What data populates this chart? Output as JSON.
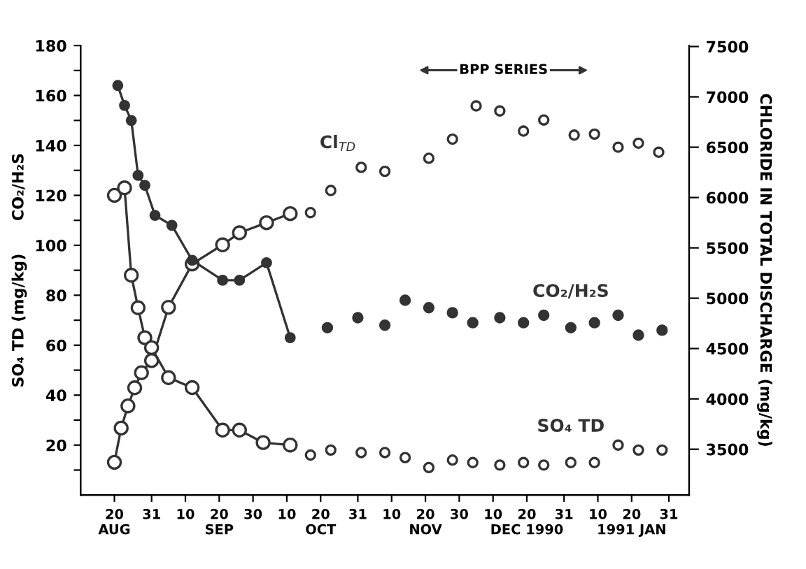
{
  "chart_data": {
    "type": "scatter",
    "xlabel": null,
    "ylabel": "SO₄ TD (mg/kg)      CO₂/H₂S",
    "y2label": "CHLORIDE IN TOTAL DISCHARGE (mg/kg)",
    "series": [
      {
        "type": "line",
        "marker": "circle",
        "color": "#333333",
        "x": [
          "1990-08-21",
          "1990-08-23",
          "1990-08-25",
          "1990-08-27",
          "1990-08-29",
          "1990-09-01",
          "1990-09-06",
          "1990-09-12",
          "1990-09-21",
          "1990-09-26",
          "1990-10-04",
          "1990-10-11"
        ],
        "values": [
          164,
          156,
          150,
          128,
          124,
          112,
          108,
          94,
          86,
          86,
          93,
          63
        ]
      },
      {
        "name": "CO₂/H₂S",
        "marker": "circle",
        "color": "#333333",
        "x": [
          "1990-10-22",
          "1990-10-31",
          "1990-11-08",
          "1990-11-14",
          "1990-11-21",
          "1990-11-28",
          "1990-12-04",
          "1990-12-12",
          "1990-12-19",
          "1990-12-25",
          "1991-01-02",
          "1991-01-09",
          "1991-01-16",
          "1991-01-22",
          "1991-01-29"
        ],
        "values": [
          67,
          71,
          68,
          78,
          75,
          73,
          69,
          71,
          69,
          72,
          67,
          69,
          72,
          64,
          66
        ]
      },
      {
        "type": "line",
        "marker": "open circle",
        "axis": "y2",
        "color": "#333333",
        "x": [
          "1990-08-20",
          "1990-08-22",
          "1990-08-24",
          "1990-08-26",
          "1990-08-28",
          "1990-08-31",
          "1990-09-05",
          "1990-09-12",
          "1990-09-21",
          "1990-09-26",
          "1990-10-04",
          "1990-10-11"
        ],
        "values": [
          3370,
          3710,
          3930,
          4110,
          4260,
          4380,
          4910,
          5340,
          5530,
          5650,
          5750,
          5840
        ]
      },
      {
        "name": "Cl$_{TD}$",
        "marker": "open circle",
        "axis": "y2",
        "color": "#333333",
        "x": [
          "1990-10-17",
          "1990-10-23",
          "1990-11-01",
          "1990-11-08",
          "1990-11-21",
          "1990-11-28",
          "1990-12-05",
          "1990-12-12",
          "1990-12-19",
          "1990-12-25",
          "1991-01-03",
          "1991-01-09",
          "1991-01-16",
          "1991-01-22",
          "1991-01-28"
        ],
        "values": [
          5850,
          6070,
          6300,
          6260,
          6390,
          6580,
          6910,
          6860,
          6660,
          6770,
          6620,
          6630,
          6500,
          6540,
          6450
        ]
      },
      {
        "type": "line",
        "marker": "open circle",
        "color": "#333333",
        "x": [
          "1990-08-20",
          "1990-08-23",
          "1990-08-25",
          "1990-08-27",
          "1990-08-29",
          "1990-08-31",
          "1990-09-05",
          "1990-09-12",
          "1990-09-21",
          "1990-09-26",
          "1990-10-03",
          "1990-10-11"
        ],
        "values": [
          120,
          123,
          88,
          75,
          63,
          59,
          47,
          43,
          26,
          26,
          21,
          20
        ]
      },
      {
        "name": "SO₄ TD",
        "marker": "open circle",
        "color": "#333333",
        "x": [
          "1990-10-17",
          "1990-10-23",
          "1990-11-01",
          "1990-11-08",
          "1990-11-14",
          "1990-11-21",
          "1990-11-28",
          "1990-12-04",
          "1990-12-12",
          "1990-12-19",
          "1990-12-25",
          "1991-01-02",
          "1991-01-09",
          "1991-01-16",
          "1991-01-22",
          "1991-01-29"
        ],
        "values": [
          16,
          18,
          17,
          17,
          15,
          11,
          14,
          13,
          12,
          13,
          12,
          13,
          13,
          20,
          18,
          18
        ]
      }
    ],
    "xlim": [
      "1990-08-10",
      "1991-02-06"
    ],
    "xticks": [
      {
        "value": "1990-08-20",
        "label": "20\nAUG"
      },
      {
        "value": "1990-08-31",
        "label": "31"
      },
      {
        "value": "1990-09-10",
        "label": "10"
      },
      {
        "value": "1990-09-20",
        "label": "20\nSEP"
      },
      {
        "value": "1990-09-30",
        "label": "30"
      },
      {
        "value": "1990-10-10",
        "label": "10"
      },
      {
        "value": "1990-10-20",
        "label": "20\nOCT"
      },
      {
        "value": "1990-10-31",
        "label": "31"
      },
      {
        "value": "1990-11-10",
        "label": "10"
      },
      {
        "value": "1990-11-20",
        "label": "20\nNOV"
      },
      {
        "value": "1990-11-30",
        "label": "30"
      },
      {
        "value": "1990-12-10",
        "label": "10"
      },
      {
        "value": "1990-12-20",
        "label": "20\nDEC 1990"
      },
      {
        "value": "1990-12-31",
        "label": "31"
      },
      {
        "value": "1991-01-10",
        "label": "10"
      },
      {
        "value": "1991-01-20",
        "label": "20\n1991 JAN"
      },
      {
        "value": "1991-01-31",
        "label": "31"
      }
    ],
    "ylim": [
      0,
      180
    ],
    "yticks": [
      {
        "value": 10,
        "label": null
      },
      20,
      {
        "value": 30,
        "label": null
      },
      40,
      {
        "value": 50,
        "label": null
      },
      60,
      {
        "value": 70,
        "label": null
      },
      80,
      {
        "value": 90,
        "label": null
      },
      100,
      {
        "value": 110,
        "label": null
      },
      120,
      {
        "value": 130,
        "label": null
      },
      140,
      {
        "value": 150,
        "label": null
      },
      160,
      {
        "value": 170,
        "label": null
      },
      180
    ],
    "y2lim": [
      3045,
      7510
    ],
    "y2ticks": [
      3500,
      4000,
      4500,
      5000,
      5500,
      6000,
      6500,
      7000,
      7500
    ],
    "annotations": [
      "BPP SERIES"
    ],
    "grid": false,
    "legend": false,
    "line_style": "solid"
  }
}
